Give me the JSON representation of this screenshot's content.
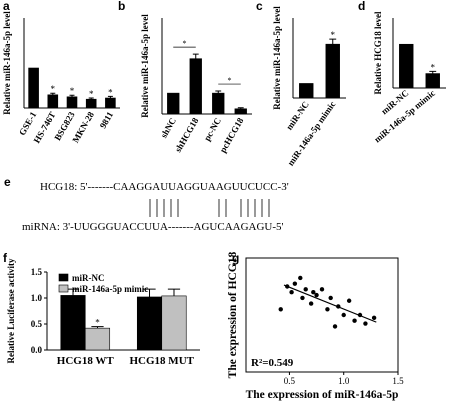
{
  "chart_data": [
    {
      "type": "bar",
      "label": "a",
      "ylabel": "Relative miR-146a-5p level",
      "categories": [
        "GSE-1",
        "HS-746T",
        "BSG823",
        "MKN-28",
        "9811"
      ],
      "values": [
        1.0,
        0.33,
        0.28,
        0.22,
        0.25
      ],
      "errors": [
        0.0,
        0.04,
        0.04,
        0.03,
        0.04
      ],
      "color": "#000000",
      "ylim": [
        0,
        2.25
      ],
      "annotations": [
        {
          "index": 1,
          "text": "*"
        },
        {
          "index": 2,
          "text": "*"
        },
        {
          "index": 3,
          "text": "*"
        },
        {
          "index": 4,
          "text": "*"
        }
      ]
    },
    {
      "type": "bar",
      "label": "b",
      "ylabel": "Relative miR-146a-5p level",
      "categories": [
        "shNC",
        "shHCG18",
        "pc-NC",
        "pcHCG18"
      ],
      "values": [
        1.0,
        2.65,
        1.0,
        0.25
      ],
      "errors": [
        0.0,
        0.22,
        0.1,
        0.05
      ],
      "color": "#000000",
      "ylim": [
        0,
        4.6
      ],
      "brackets": [
        {
          "from": 0,
          "to": 1,
          "text": "*"
        },
        {
          "from": 2,
          "to": 3,
          "text": "*"
        }
      ]
    },
    {
      "type": "bar",
      "label": "c",
      "ylabel": "Relative miR-146a-5p level",
      "categories": [
        "miR-NC",
        "miR-146a-5p mimic"
      ],
      "values": [
        1.0,
        3.7
      ],
      "errors": [
        0.0,
        0.35
      ],
      "color": "#000000",
      "ylim": [
        0,
        5.5
      ],
      "annotations": [
        {
          "index": 1,
          "text": "*"
        }
      ]
    },
    {
      "type": "bar",
      "label": "d",
      "ylabel": "Relative HCG18 level",
      "categories": [
        "miR-NC",
        "miR-146a-5p mimic"
      ],
      "values": [
        1.0,
        0.33
      ],
      "errors": [
        0.0,
        0.05
      ],
      "color": "#000000",
      "ylim": [
        0,
        1.6
      ],
      "annotations": [
        {
          "index": 1,
          "text": "*"
        }
      ]
    },
    {
      "type": "bar",
      "label": "f",
      "ylabel": "Relative Luciferase activity",
      "categories": [
        "HCG18 WT",
        "HCG18 MUT"
      ],
      "series": [
        {
          "name": "miR-NC",
          "color": "#000000",
          "values": [
            1.05,
            1.02
          ],
          "errors": [
            0.12,
            0.15
          ]
        },
        {
          "name": "miR-146a-5p mimic",
          "color": "#c0c0c0",
          "values": [
            0.42,
            1.04
          ],
          "errors": [
            0.03,
            0.13
          ]
        }
      ],
      "ylim": [
        0,
        1.5
      ],
      "yticks": [
        {
          "value": 0,
          "label": "0.0"
        },
        0.5,
        {
          "value": 1,
          "label": "1.0"
        },
        1.5
      ],
      "legend": "upper left",
      "annotations": [
        {
          "index": 0,
          "series": 1,
          "text": "*"
        }
      ]
    },
    {
      "type": "scatter",
      "label": "g",
      "xlabel": "The expression of miR-146a-5p",
      "ylabel": "The expression of HCG18",
      "x": [
        0.42,
        0.48,
        0.52,
        0.55,
        0.6,
        0.62,
        0.65,
        0.7,
        0.72,
        0.75,
        0.8,
        0.85,
        0.88,
        0.92,
        0.95,
        1.0,
        1.05,
        1.1,
        1.15,
        1.2,
        1.28
      ],
      "y": [
        2.2,
        3.0,
        2.8,
        3.1,
        3.3,
        2.6,
        2.9,
        2.4,
        2.8,
        2.7,
        2.9,
        2.2,
        2.6,
        1.6,
        2.3,
        2.0,
        2.5,
        1.8,
        2.0,
        1.7,
        1.9
      ],
      "color": "#000000",
      "xlim": [
        0.1,
        1.5
      ],
      "ylim": [
        0,
        4
      ],
      "xticks": [
        0.5,
        {
          "value": 1,
          "label": "1.0"
        },
        1.5
      ],
      "trendline": {
        "x": [
          0.45,
          1.3
        ],
        "y": [
          3.05,
          1.75
        ]
      },
      "annotation": "R²=0.549"
    }
  ],
  "sequence_panel": {
    "label": "e",
    "rows": [
      "HCG18: 5'-------CAAGGAUUAGGUAAGUUCUCC-3'",
      "miRNA: 3'-UUGGGUACCUUA-------AGUCAAGAGU-5'"
    ]
  }
}
